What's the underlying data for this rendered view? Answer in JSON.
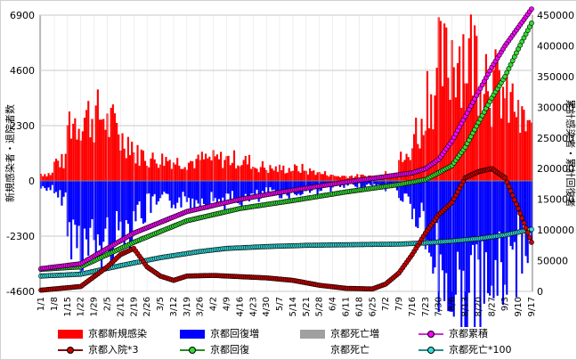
{
  "chart_data": {
    "type": "bar",
    "ylabel_left": "新規感染者・退院者数",
    "ylabel_right": "累計感染者・累計回復者",
    "left_axis": {
      "min": -4600,
      "max": 6900,
      "ticks": [
        6900,
        4600,
        2300,
        0,
        -2300,
        -4600
      ]
    },
    "right_axis": {
      "min": 0,
      "max": 450000,
      "ticks": [
        0,
        50000,
        100000,
        150000,
        200000,
        250000,
        300000,
        350000,
        400000,
        450000
      ]
    },
    "x_ticks": [
      "1/1",
      "1/8",
      "1/15",
      "1/22",
      "1/29",
      "2/5",
      "2/12",
      "2/19",
      "2/26",
      "3/5",
      "3/12",
      "3/19",
      "3/26",
      "4/2",
      "4/9",
      "4/16",
      "4/23",
      "4/30",
      "5/7",
      "5/14",
      "5/21",
      "5/28",
      "6/4",
      "6/11",
      "6/18",
      "6/25",
      "7/2",
      "7/9",
      "7/16",
      "7/23",
      "7/30",
      "8/6",
      "8/13",
      "8/20",
      "8/27",
      "9/3",
      "9/10",
      "9/17"
    ],
    "grid": true,
    "days": 260,
    "weekly_new": [
      300,
      800,
      2500,
      2700,
      2700,
      2300,
      1700,
      1100,
      900,
      900,
      800,
      800,
      900,
      900,
      900,
      800,
      600,
      500,
      500,
      500,
      400,
      300,
      200,
      200,
      200,
      200,
      400,
      900,
      2100,
      3800,
      4800,
      5500,
      5300,
      4800,
      3900,
      3200,
      2400,
      1900
    ],
    "weekly_recovered": [
      300,
      700,
      2200,
      2700,
      2700,
      2400,
      1900,
      1300,
      1000,
      900,
      800,
      800,
      800,
      800,
      800,
      800,
      700,
      500,
      500,
      500,
      400,
      300,
      250,
      200,
      200,
      200,
      300,
      700,
      1600,
      3000,
      4200,
      5000,
      5200,
      4800,
      4100,
      3400,
      2600,
      2000
    ],
    "series_points": {
      "cumulative": [
        [
          0,
          37000
        ],
        [
          21,
          45000
        ],
        [
          49,
          95000
        ],
        [
          77,
          130000
        ],
        [
          105,
          150000
        ],
        [
          133,
          165000
        ],
        [
          161,
          178000
        ],
        [
          189,
          190000
        ],
        [
          196,
          193000
        ],
        [
          203,
          200000
        ],
        [
          210,
          215000
        ],
        [
          217,
          245000
        ],
        [
          224,
          285000
        ],
        [
          231,
          325000
        ],
        [
          238,
          365000
        ],
        [
          245,
          400000
        ],
        [
          252,
          430000
        ],
        [
          259,
          460000
        ]
      ],
      "hospitalized": [
        [
          0,
          2000
        ],
        [
          21,
          8000
        ],
        [
          35,
          40000
        ],
        [
          42,
          60000
        ],
        [
          49,
          70000
        ],
        [
          56,
          40000
        ],
        [
          63,
          25000
        ],
        [
          70,
          18000
        ],
        [
          77,
          25000
        ],
        [
          91,
          26000
        ],
        [
          105,
          24000
        ],
        [
          119,
          22000
        ],
        [
          133,
          18000
        ],
        [
          147,
          10000
        ],
        [
          161,
          5000
        ],
        [
          175,
          4000
        ],
        [
          182,
          12000
        ],
        [
          189,
          30000
        ],
        [
          196,
          60000
        ],
        [
          203,
          95000
        ],
        [
          210,
          125000
        ],
        [
          217,
          145000
        ],
        [
          224,
          185000
        ],
        [
          231,
          195000
        ],
        [
          238,
          200000
        ],
        [
          245,
          185000
        ],
        [
          252,
          135000
        ],
        [
          259,
          80000
        ]
      ],
      "recovered": [
        [
          0,
          36000
        ],
        [
          21,
          40000
        ],
        [
          49,
          80000
        ],
        [
          77,
          115000
        ],
        [
          105,
          135000
        ],
        [
          133,
          148000
        ],
        [
          161,
          162000
        ],
        [
          189,
          174000
        ],
        [
          203,
          182000
        ],
        [
          217,
          205000
        ],
        [
          224,
          235000
        ],
        [
          231,
          275000
        ],
        [
          238,
          315000
        ],
        [
          245,
          350000
        ],
        [
          252,
          395000
        ],
        [
          259,
          437000
        ]
      ],
      "deaths100": [
        [
          0,
          25000
        ],
        [
          21,
          28000
        ],
        [
          42,
          42000
        ],
        [
          63,
          55000
        ],
        [
          84,
          65000
        ],
        [
          98,
          70000
        ],
        [
          119,
          73000
        ],
        [
          140,
          75000
        ],
        [
          161,
          76000
        ],
        [
          189,
          77000
        ],
        [
          203,
          79000
        ],
        [
          217,
          82000
        ],
        [
          231,
          86000
        ],
        [
          245,
          92000
        ],
        [
          259,
          101000
        ]
      ]
    },
    "legend": [
      {
        "name": "京都新規感染",
        "color": "#ff0000",
        "kind": "box"
      },
      {
        "name": "京都回復増",
        "color": "#0000ff",
        "kind": "box"
      },
      {
        "name": "京都死亡増",
        "color": "#a0a0a0",
        "kind": "box"
      },
      {
        "name": "京都累積",
        "color": "#cc33cc",
        "marker": "#ff00ff",
        "kind": "line"
      },
      {
        "name": "京都入院*3",
        "color": "#7a1010",
        "marker": "#cc0000",
        "kind": "line"
      },
      {
        "name": "京都回復",
        "color": "#2a8a2a",
        "marker": "#33dd33",
        "kind": "line"
      },
      {
        "name": "京都死亡",
        "color": "#999999",
        "kind": "none"
      },
      {
        "name": "京都死亡*100",
        "color": "#2a8a8a",
        "marker": "#33dddd",
        "kind": "line"
      }
    ]
  }
}
